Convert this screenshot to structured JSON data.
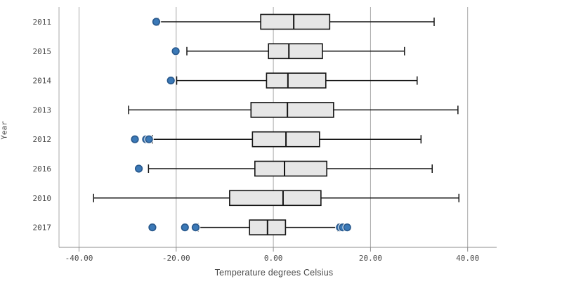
{
  "chart_data": {
    "type": "boxplot",
    "orientation": "horizontal",
    "title": "",
    "xlabel": "Temperature degrees Celsius",
    "ylabel": "Year",
    "legend": "none",
    "grid": "vertical",
    "xlim": [
      -44,
      46
    ],
    "xticks": {
      "values": [
        -40,
        -20,
        0,
        20,
        40
      ],
      "labels": [
        "-40.00",
        "-20.00",
        "0.00",
        "20.00",
        "40.00"
      ]
    },
    "categories": [
      "2011",
      "2015",
      "2014",
      "2013",
      "2012",
      "2016",
      "2010",
      "2017"
    ],
    "series": [
      {
        "category": "2011",
        "whisker_low": -23.7,
        "q1": -2.6,
        "median": 4.2,
        "q3": 11.6,
        "whisker_high": 33.1,
        "outliers": [
          -24.1
        ]
      },
      {
        "category": "2015",
        "whisker_low": -17.8,
        "q1": -1.0,
        "median": 3.2,
        "q3": 10.1,
        "whisker_high": 27.0,
        "outliers": [
          -20.1
        ]
      },
      {
        "category": "2014",
        "whisker_low": -19.9,
        "q1": -1.4,
        "median": 3.0,
        "q3": 10.8,
        "whisker_high": 29.6,
        "outliers": [
          -21.1
        ]
      },
      {
        "category": "2013",
        "whisker_low": -29.8,
        "q1": -4.6,
        "median": 2.9,
        "q3": 12.4,
        "whisker_high": 38.0,
        "outliers": []
      },
      {
        "category": "2012",
        "whisker_low": -24.9,
        "q1": -4.3,
        "median": 2.6,
        "q3": 9.5,
        "whisker_high": 30.4,
        "outliers": [
          -28.5,
          -26.2,
          -25.6
        ]
      },
      {
        "category": "2016",
        "whisker_low": -25.7,
        "q1": -3.8,
        "median": 2.3,
        "q3": 11.0,
        "whisker_high": 32.7,
        "outliers": [
          -27.7
        ]
      },
      {
        "category": "2010",
        "whisker_low": -37.0,
        "q1": -9.0,
        "median": 2.0,
        "q3": 9.8,
        "whisker_high": 38.2,
        "outliers": []
      },
      {
        "category": "2017",
        "whisker_low": -15.5,
        "q1": -4.9,
        "median": -1.2,
        "q3": 2.5,
        "whisker_high": 13.3,
        "outliers": [
          -24.9,
          -18.2,
          -16.0,
          13.7,
          14.3,
          15.2
        ]
      }
    ]
  },
  "colors": {
    "background": "#ffffff",
    "box_fill": "#e6e6e6",
    "box_stroke": "#141414",
    "whisker": "#141414",
    "outlier_fill": "#3b79b7",
    "outlier_stroke": "#28588c",
    "gridline": "#a8a8a8",
    "axis_line": "#8c8c8c",
    "tick_text": "#4a4a4a"
  }
}
